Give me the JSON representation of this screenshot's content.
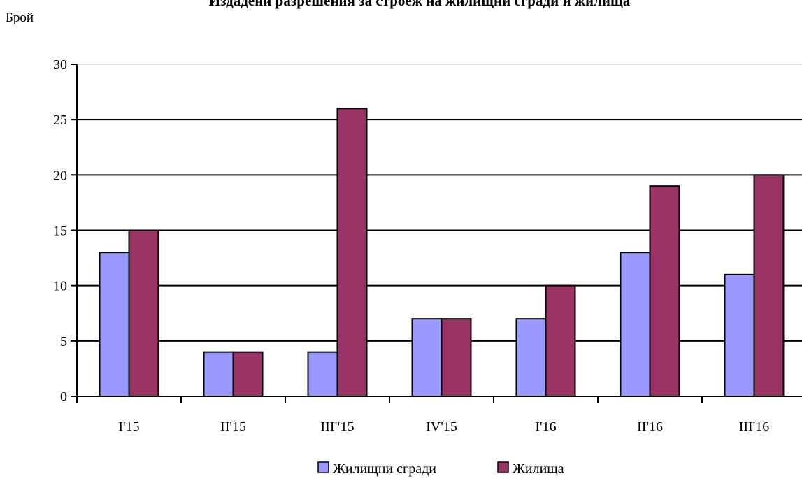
{
  "chart_data": {
    "type": "bar",
    "title": "Издадени разрешения за строеж на жилищни сгради и жилища",
    "ylabel": "Брой",
    "xlabel": "",
    "ylim": [
      0,
      30
    ],
    "yticks": [
      0,
      5,
      10,
      15,
      20,
      25,
      30
    ],
    "grid": true,
    "legend_position": "bottom",
    "categories": [
      "I'15",
      "II'15",
      "III\"15",
      "IV'15",
      "I'16",
      "II'16",
      "III'16"
    ],
    "series": [
      {
        "name": "Жилищни сгради",
        "color": "#9999ff",
        "values": [
          13,
          4,
          4,
          7,
          7,
          13,
          11
        ]
      },
      {
        "name": "Жилища",
        "color": "#993366",
        "values": [
          15,
          4,
          26,
          7,
          10,
          19,
          20
        ]
      }
    ]
  }
}
